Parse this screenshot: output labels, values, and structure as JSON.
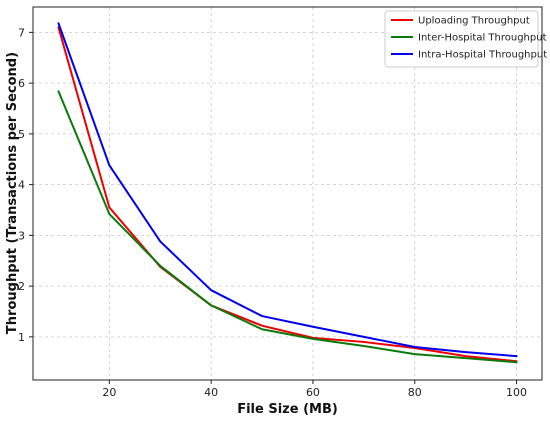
{
  "chart_data": {
    "type": "line",
    "title": "",
    "xlabel": "File Size (MB)",
    "ylabel": "Throughput (Transactions per Second)",
    "xlim": [
      5,
      105
    ],
    "ylim": [
      0.15,
      7.5
    ],
    "xticks": [
      20,
      40,
      60,
      80,
      100
    ],
    "yticks": [
      1,
      2,
      3,
      4,
      5,
      6,
      7
    ],
    "grid": true,
    "legend_position": "top-right",
    "x": [
      10,
      20,
      30,
      40,
      50,
      60,
      70,
      80,
      90,
      100
    ],
    "series": [
      {
        "name": "Uploading Throughput",
        "color": "#ee0000",
        "values": [
          7.1,
          3.55,
          2.38,
          1.62,
          1.22,
          0.98,
          0.9,
          0.78,
          0.62,
          0.52
        ]
      },
      {
        "name": "Inter-Hospital Throughput",
        "color": "#0a7a0a",
        "values": [
          5.84,
          3.42,
          2.4,
          1.62,
          1.15,
          0.96,
          0.82,
          0.66,
          0.58,
          0.5
        ]
      },
      {
        "name": "Intra-Hospital Throughput",
        "color": "#0000ee",
        "values": [
          7.18,
          4.38,
          2.88,
          1.92,
          1.41,
          1.2,
          1.0,
          0.8,
          0.7,
          0.62
        ]
      }
    ]
  }
}
